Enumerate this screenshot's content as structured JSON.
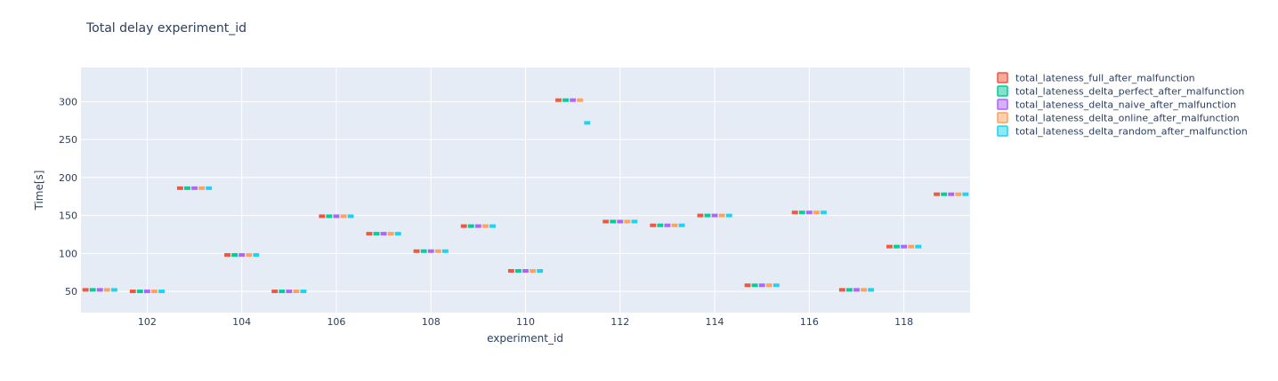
{
  "chart_data": {
    "type": "box",
    "title": "Total delay experiment_id",
    "xlabel": "experiment_id",
    "ylabel": "Time[s]",
    "xlim": [
      100.6,
      119.4
    ],
    "ylim": [
      22,
      345
    ],
    "xticks": [
      102,
      104,
      106,
      108,
      110,
      112,
      114,
      116,
      118
    ],
    "yticks": [
      50,
      100,
      150,
      200,
      250,
      300
    ],
    "legend_position": "top-right",
    "grid": true,
    "colors": {
      "plot_bg": "#e5ecf6",
      "grid": "#ffffff"
    },
    "categories": [
      101,
      102,
      103,
      104,
      105,
      106,
      107,
      108,
      109,
      110,
      111,
      112,
      113,
      114,
      115,
      116,
      117,
      118,
      119
    ],
    "series": [
      {
        "name": "total_lateness_full_after_malfunction",
        "color": "#EF553B",
        "values": [
          52,
          50,
          186,
          98,
          50,
          149,
          126,
          103,
          136,
          77,
          302,
          142,
          137,
          150,
          58,
          154,
          52,
          109,
          178
        ]
      },
      {
        "name": "total_lateness_delta_perfect_after_malfunction",
        "color": "#00CC96",
        "values": [
          52,
          50,
          186,
          98,
          50,
          149,
          126,
          103,
          136,
          77,
          302,
          142,
          137,
          150,
          58,
          154,
          52,
          109,
          178
        ]
      },
      {
        "name": "total_lateness_delta_naive_after_malfunction",
        "color": "#AB63FA",
        "values": [
          52,
          50,
          186,
          98,
          50,
          149,
          126,
          103,
          136,
          77,
          302,
          142,
          137,
          150,
          58,
          154,
          52,
          109,
          178
        ]
      },
      {
        "name": "total_lateness_delta_online_after_malfunction",
        "color": "#FFA15A",
        "values": [
          52,
          50,
          186,
          98,
          50,
          149,
          126,
          103,
          136,
          77,
          302,
          142,
          137,
          150,
          58,
          154,
          52,
          109,
          178
        ]
      },
      {
        "name": "total_lateness_delta_random_after_malfunction",
        "color": "#19D3F3",
        "values": [
          52,
          50,
          186,
          98,
          50,
          149,
          126,
          103,
          136,
          77,
          272,
          142,
          137,
          150,
          58,
          154,
          52,
          109,
          178
        ]
      }
    ]
  }
}
